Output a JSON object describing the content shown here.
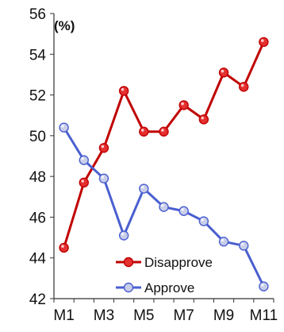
{
  "chart_data": {
    "type": "line",
    "unit_label": "(%)",
    "categories": [
      "M1",
      "M2",
      "M3",
      "M4",
      "M5",
      "M6",
      "M7",
      "M8",
      "M9",
      "M10",
      "M11"
    ],
    "x_tick_labels": [
      "M1",
      "M3",
      "M5",
      "M7",
      "M9",
      "M11"
    ],
    "ylim": [
      42,
      56
    ],
    "y_ticks": [
      42,
      44,
      46,
      48,
      50,
      52,
      54,
      56
    ],
    "grid": false,
    "legend_position": "bottom-right",
    "series": [
      {
        "name": "Disapprove",
        "color": "#c00000",
        "marker_fill": "#e53030",
        "values": [
          44.5,
          47.7,
          49.4,
          52.2,
          50.2,
          50.2,
          51.5,
          50.8,
          53.1,
          52.4,
          54.6
        ]
      },
      {
        "name": "Approve",
        "color": "#4a5fd0",
        "marker_fill": "#c8cde8",
        "values": [
          50.4,
          48.8,
          47.9,
          45.1,
          47.4,
          46.5,
          46.3,
          45.8,
          44.8,
          44.6,
          42.6
        ]
      }
    ]
  }
}
